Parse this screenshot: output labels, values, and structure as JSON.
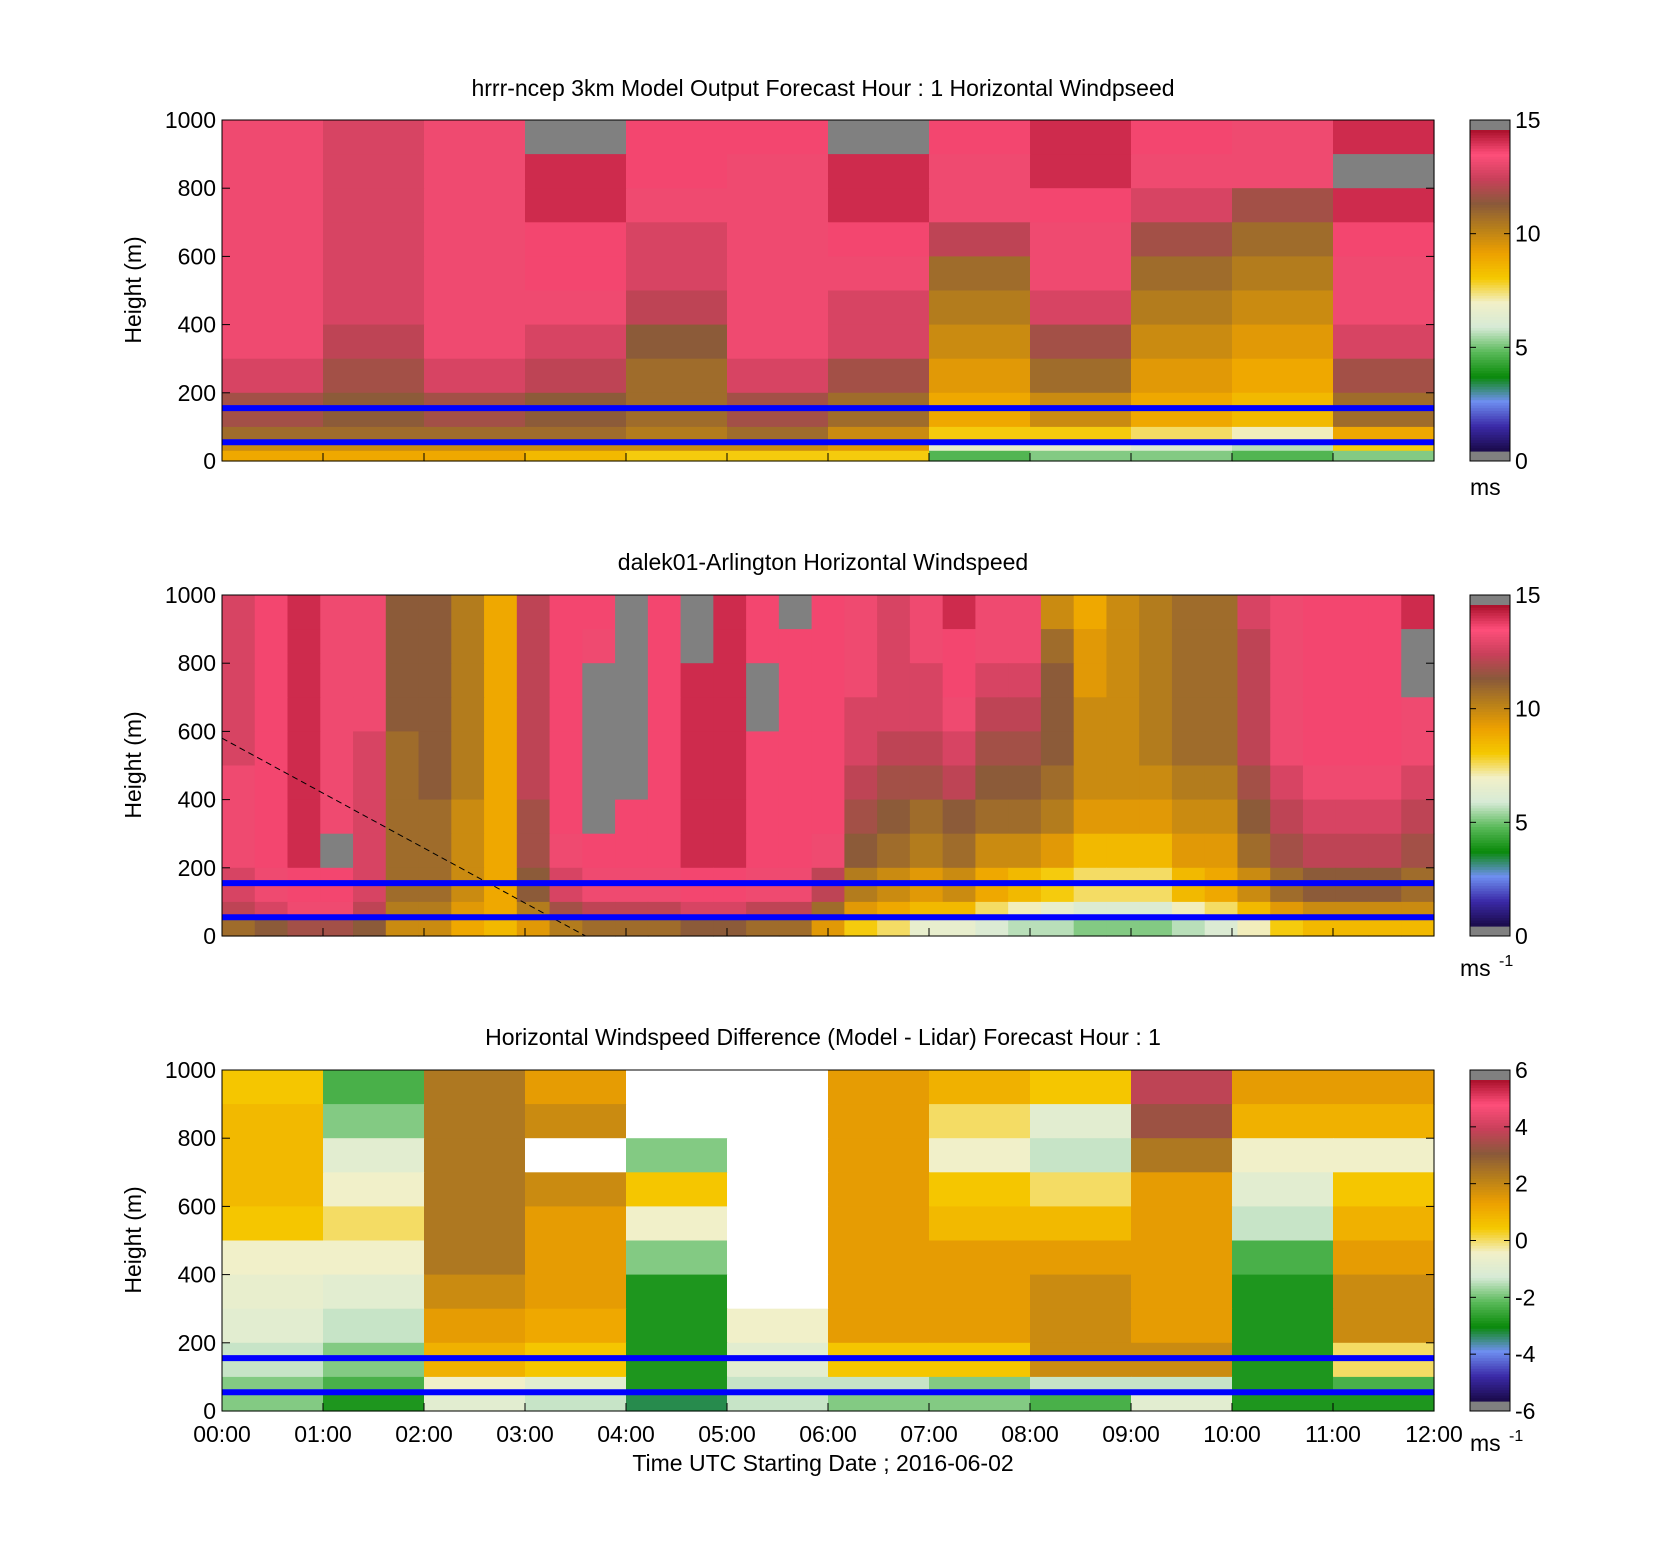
{
  "colormap_speed": [
    "#808080",
    "#1a0a4a",
    "#3b2aa8",
    "#6e8ff0",
    "#0a8a0a",
    "#5aba5a",
    "#d6ead6",
    "#f2f0c8",
    "#f5c800",
    "#eda000",
    "#b8801a",
    "#8a5a3a",
    "#c8405a",
    "#ff4e7a",
    "#a8102a",
    "#808080"
  ],
  "colormap_diff": [
    "#808080",
    "#1a0a4a",
    "#3b2aa8",
    "#6e8ff0",
    "#0a8a0a",
    "#5aba5a",
    "#d6ead6",
    "#f2f0c8",
    "#f5c800",
    "#eda000",
    "#b8801a",
    "#8a5a3a",
    "#c8405a",
    "#ff4e7a",
    "#a8102a",
    "#808080"
  ],
  "chart_data": [
    {
      "type": "heatmap",
      "title": "hrrr-ncep 3km Model Output   Forecast Hour : 1 Horizontal Windpseed",
      "ylabel": "Height (m)",
      "ylim": [
        0,
        1000
      ],
      "yticks": [
        "0",
        "200",
        "400",
        "600",
        "800",
        "1000"
      ],
      "xlim": [
        0,
        12
      ],
      "xlabel": "",
      "colorbar_ticks": [
        "0",
        "5",
        "10",
        "15"
      ],
      "colorbar_range": [
        0,
        15
      ],
      "colorbar_unit": "ms",
      "colorbar_sup": "",
      "reference_lines_m": [
        55,
        155
      ],
      "heights_m": [
        1000,
        900,
        800,
        700,
        600,
        500,
        400,
        300,
        200,
        100,
        60,
        30
      ],
      "values": [
        [
          13.5,
          13,
          13.5,
          -1,
          14,
          14,
          -1,
          14,
          14.5,
          14,
          13.5,
          14.5
        ],
        [
          13.5,
          13,
          13.5,
          14.5,
          14,
          13.5,
          14.5,
          13.5,
          14.5,
          13.5,
          13.5,
          -1
        ],
        [
          13.5,
          13,
          13.5,
          14.5,
          13.5,
          13.5,
          14.5,
          13.5,
          14,
          13,
          12,
          14.5
        ],
        [
          13.5,
          13,
          13.5,
          14,
          13,
          13.5,
          14,
          12.5,
          13.5,
          12,
          11,
          14
        ],
        [
          13.5,
          13,
          13.5,
          14,
          13,
          13.5,
          13.5,
          11,
          13.5,
          11,
          10.5,
          13.5
        ],
        [
          13.5,
          13,
          13.5,
          13.5,
          12.5,
          13.5,
          13,
          10.5,
          13,
          10.5,
          10,
          13.5
        ],
        [
          13.5,
          12.5,
          13.5,
          13,
          11.5,
          13.5,
          13,
          10,
          12,
          10,
          9.5,
          13
        ],
        [
          13,
          12,
          13,
          12.5,
          11,
          13,
          12,
          9.5,
          11,
          9.5,
          9,
          12
        ],
        [
          12,
          11.5,
          12,
          11.5,
          11,
          12,
          11,
          9,
          10,
          9,
          8.5,
          11
        ],
        [
          11,
          11,
          11,
          11,
          10.5,
          11,
          10,
          8,
          8,
          7.5,
          7,
          9
        ],
        [
          10,
          10,
          10,
          10,
          10,
          10,
          9.5,
          6.5,
          6.5,
          6,
          5.5,
          8
        ],
        [
          9,
          9,
          9,
          8.5,
          8,
          8,
          8,
          4.5,
          5,
          5,
          4.5,
          5
        ]
      ]
    },
    {
      "type": "heatmap",
      "title": "dalek01-Arlington  Horizontal Windspeed",
      "ylabel": "Height (m)",
      "ylim": [
        0,
        1000
      ],
      "yticks": [
        "0",
        "200",
        "400",
        "600",
        "800",
        "1000"
      ],
      "xlim": [
        0,
        12
      ],
      "xlabel": "",
      "colorbar_ticks": [
        "0",
        "5",
        "10",
        "15"
      ],
      "colorbar_range": [
        0,
        15
      ],
      "colorbar_unit": "ms",
      "colorbar_sup": "-1",
      "reference_lines_m": [
        55,
        155
      ],
      "heights_m": [
        1000,
        900,
        800,
        700,
        600,
        500,
        400,
        300,
        200,
        100,
        50
      ],
      "values": [
        [
          13,
          14,
          14.5,
          13.5,
          13.5,
          11.5,
          11.5,
          10.5,
          9,
          12.5,
          14,
          14,
          -1,
          14,
          -1,
          14.5,
          14,
          -1,
          14,
          13.5,
          13,
          13.5,
          14.5,
          13.5,
          13.5,
          10,
          9,
          10,
          10.5,
          11,
          11,
          13,
          13.5,
          14,
          14,
          14,
          14.5
        ],
        [
          13,
          14,
          14.5,
          13.5,
          13.5,
          11.5,
          11.5,
          10.5,
          9,
          12.5,
          14,
          13.5,
          -1,
          14,
          -1,
          14.5,
          14,
          14,
          14,
          13.5,
          13,
          13.5,
          14,
          13.5,
          13.5,
          11,
          9.5,
          10,
          10.5,
          11,
          11,
          12.5,
          13.5,
          14,
          14,
          14,
          -1
        ],
        [
          13,
          14,
          14.5,
          13.5,
          13.5,
          11.5,
          11.5,
          10.5,
          9,
          12.5,
          14,
          -1,
          -1,
          14,
          14.5,
          14.5,
          -1,
          14,
          14,
          13.5,
          13,
          13,
          14,
          13,
          13,
          11.5,
          9.5,
          10,
          10.5,
          11,
          11,
          12.5,
          13.5,
          14,
          14,
          14,
          -1
        ],
        [
          13,
          14,
          14.5,
          13.5,
          13.5,
          11.5,
          11.5,
          10.5,
          9,
          12.5,
          14,
          -1,
          -1,
          14,
          14.5,
          14.5,
          -1,
          14,
          14,
          13,
          13,
          13,
          13.5,
          12.5,
          12.5,
          11.5,
          10,
          10,
          10.5,
          11,
          11,
          12.5,
          13.5,
          14,
          14,
          14,
          13.5
        ],
        [
          13,
          14,
          14.5,
          13.5,
          13,
          11,
          11.5,
          10.5,
          9,
          12.5,
          14,
          -1,
          -1,
          14,
          14.5,
          14.5,
          14,
          14,
          14,
          13,
          12.5,
          12.5,
          13,
          12,
          12,
          11.5,
          10,
          10,
          10.5,
          11,
          11,
          12.5,
          13.5,
          14,
          14,
          14,
          13.5
        ],
        [
          13.5,
          14,
          14.5,
          13.5,
          13,
          11,
          11.5,
          10.5,
          9,
          12.5,
          14,
          -1,
          -1,
          14,
          14.5,
          14.5,
          14,
          14,
          14,
          12.5,
          12,
          12,
          12.5,
          11.5,
          11.5,
          11,
          10,
          10,
          10,
          10.5,
          10.5,
          12,
          13,
          13.5,
          13.5,
          13.5,
          13
        ],
        [
          13.5,
          14,
          14.5,
          13.5,
          13,
          11,
          11,
          10,
          9,
          12,
          14,
          -1,
          14,
          14,
          14.5,
          14.5,
          14,
          14,
          14,
          12,
          11.5,
          11,
          11.5,
          11,
          11,
          10.5,
          9.5,
          9.5,
          9.5,
          10,
          10,
          11.5,
          12.5,
          13,
          13,
          13,
          12.5
        ],
        [
          13.5,
          14,
          14.5,
          -1,
          13,
          11,
          11,
          10,
          9,
          12,
          13.5,
          14,
          14,
          14,
          14.5,
          14.5,
          14,
          14,
          13.5,
          11.5,
          11,
          10.5,
          11,
          10,
          10,
          9.5,
          8.5,
          8.5,
          8.5,
          9.5,
          9.5,
          11,
          12,
          12.5,
          12.5,
          12.5,
          12
        ],
        [
          13,
          13.5,
          14,
          14,
          13,
          11,
          11,
          10,
          9,
          11.5,
          13,
          13.5,
          13.5,
          13.5,
          14,
          14,
          13.5,
          13.5,
          12.5,
          10.5,
          10,
          9.5,
          10,
          9,
          8.5,
          8,
          7.5,
          7.5,
          7.5,
          8.5,
          9,
          10,
          11,
          11.5,
          11.5,
          11.5,
          11
        ],
        [
          12.5,
          13,
          13.5,
          13.5,
          12.5,
          10.5,
          10.5,
          9.5,
          9,
          10.5,
          12,
          12.5,
          12.5,
          12.5,
          13,
          13,
          12.5,
          12.5,
          11,
          9.5,
          9,
          8.5,
          8.5,
          7.5,
          7,
          6.5,
          6,
          6,
          6,
          7,
          7.5,
          8.5,
          9.5,
          10,
          10,
          10,
          10
        ],
        [
          11,
          11.5,
          12,
          12,
          11.5,
          10,
          10,
          9,
          8.5,
          9.5,
          10.5,
          11,
          11,
          11,
          11.5,
          11.5,
          11,
          11,
          9.5,
          8,
          7.5,
          6.5,
          6.5,
          6,
          5.5,
          5.5,
          5,
          5,
          5,
          5.5,
          6,
          7,
          8,
          8.5,
          8.5,
          8.5,
          8.5
        ]
      ],
      "dashed_line": {
        "x": [
          0,
          3.6
        ],
        "y": [
          580,
          0
        ]
      }
    },
    {
      "type": "heatmap",
      "title": "Horizontal Windspeed Difference (Model - Lidar) Forecast Hour : 1",
      "ylabel": "Height (m)",
      "ylim": [
        0,
        1000
      ],
      "yticks": [
        "0",
        "200",
        "400",
        "600",
        "800",
        "1000"
      ],
      "xlim": [
        0,
        12
      ],
      "xticklabels": [
        "00:00",
        "01:00",
        "02:00",
        "03:00",
        "04:00",
        "05:00",
        "06:00",
        "07:00",
        "08:00",
        "09:00",
        "10:00",
        "11:00",
        "12:00"
      ],
      "xlabel": "Time UTC  Starting Date ; 2016-06-02",
      "colorbar_ticks": [
        "-6",
        "-4",
        "-2",
        "0",
        "2",
        "4",
        "6"
      ],
      "colorbar_range": [
        -6,
        6
      ],
      "colorbar_unit": "ms",
      "colorbar_sup": "-1",
      "reference_lines_m": [
        55,
        155
      ],
      "heights_m": [
        1000,
        900,
        800,
        700,
        600,
        500,
        400,
        300,
        200,
        100,
        50
      ],
      "values": [
        [
          0.5,
          -2.5,
          2.5,
          1.5,
          null,
          null,
          1.5,
          1,
          0.5,
          4,
          1.5,
          1.5
        ],
        [
          0.8,
          -2,
          2.5,
          2,
          null,
          null,
          1.5,
          0,
          -1,
          3.5,
          1,
          1
        ],
        [
          0.8,
          -1,
          2.5,
          null,
          -2,
          null,
          1.5,
          -0.5,
          -1.5,
          2.5,
          -0.5,
          -0.5
        ],
        [
          0.8,
          -0.5,
          2.5,
          2,
          0.5,
          null,
          1.5,
          0.5,
          0,
          1.5,
          -1,
          0.5
        ],
        [
          0.5,
          0,
          2.5,
          1.5,
          -0.5,
          null,
          1.5,
          0.8,
          0.8,
          1.5,
          -1.5,
          1
        ],
        [
          -0.5,
          -0.5,
          2.5,
          1.5,
          -2,
          null,
          1.5,
          1.5,
          1.5,
          1.5,
          -2.5,
          1.5
        ],
        [
          -0.8,
          -1,
          2,
          1.5,
          -3,
          null,
          1.5,
          1.5,
          2,
          1.5,
          -3,
          2
        ],
        [
          -1,
          -1.5,
          1.5,
          1.2,
          -3,
          -0.5,
          1.5,
          1.5,
          2,
          1.5,
          -3,
          2
        ],
        [
          -1.5,
          -2,
          1,
          0.5,
          -3,
          -1,
          0.5,
          0.5,
          2,
          2,
          -3,
          0
        ],
        [
          -2,
          -2.5,
          -0.5,
          -1,
          -3,
          -1.5,
          -1.5,
          -2,
          -1.5,
          -1.5,
          -3,
          -2.5
        ],
        [
          -2,
          -3,
          -1,
          -1.5,
          -3.5,
          -1.5,
          -2,
          -2,
          -2.5,
          -1,
          -3,
          -3
        ]
      ]
    }
  ]
}
